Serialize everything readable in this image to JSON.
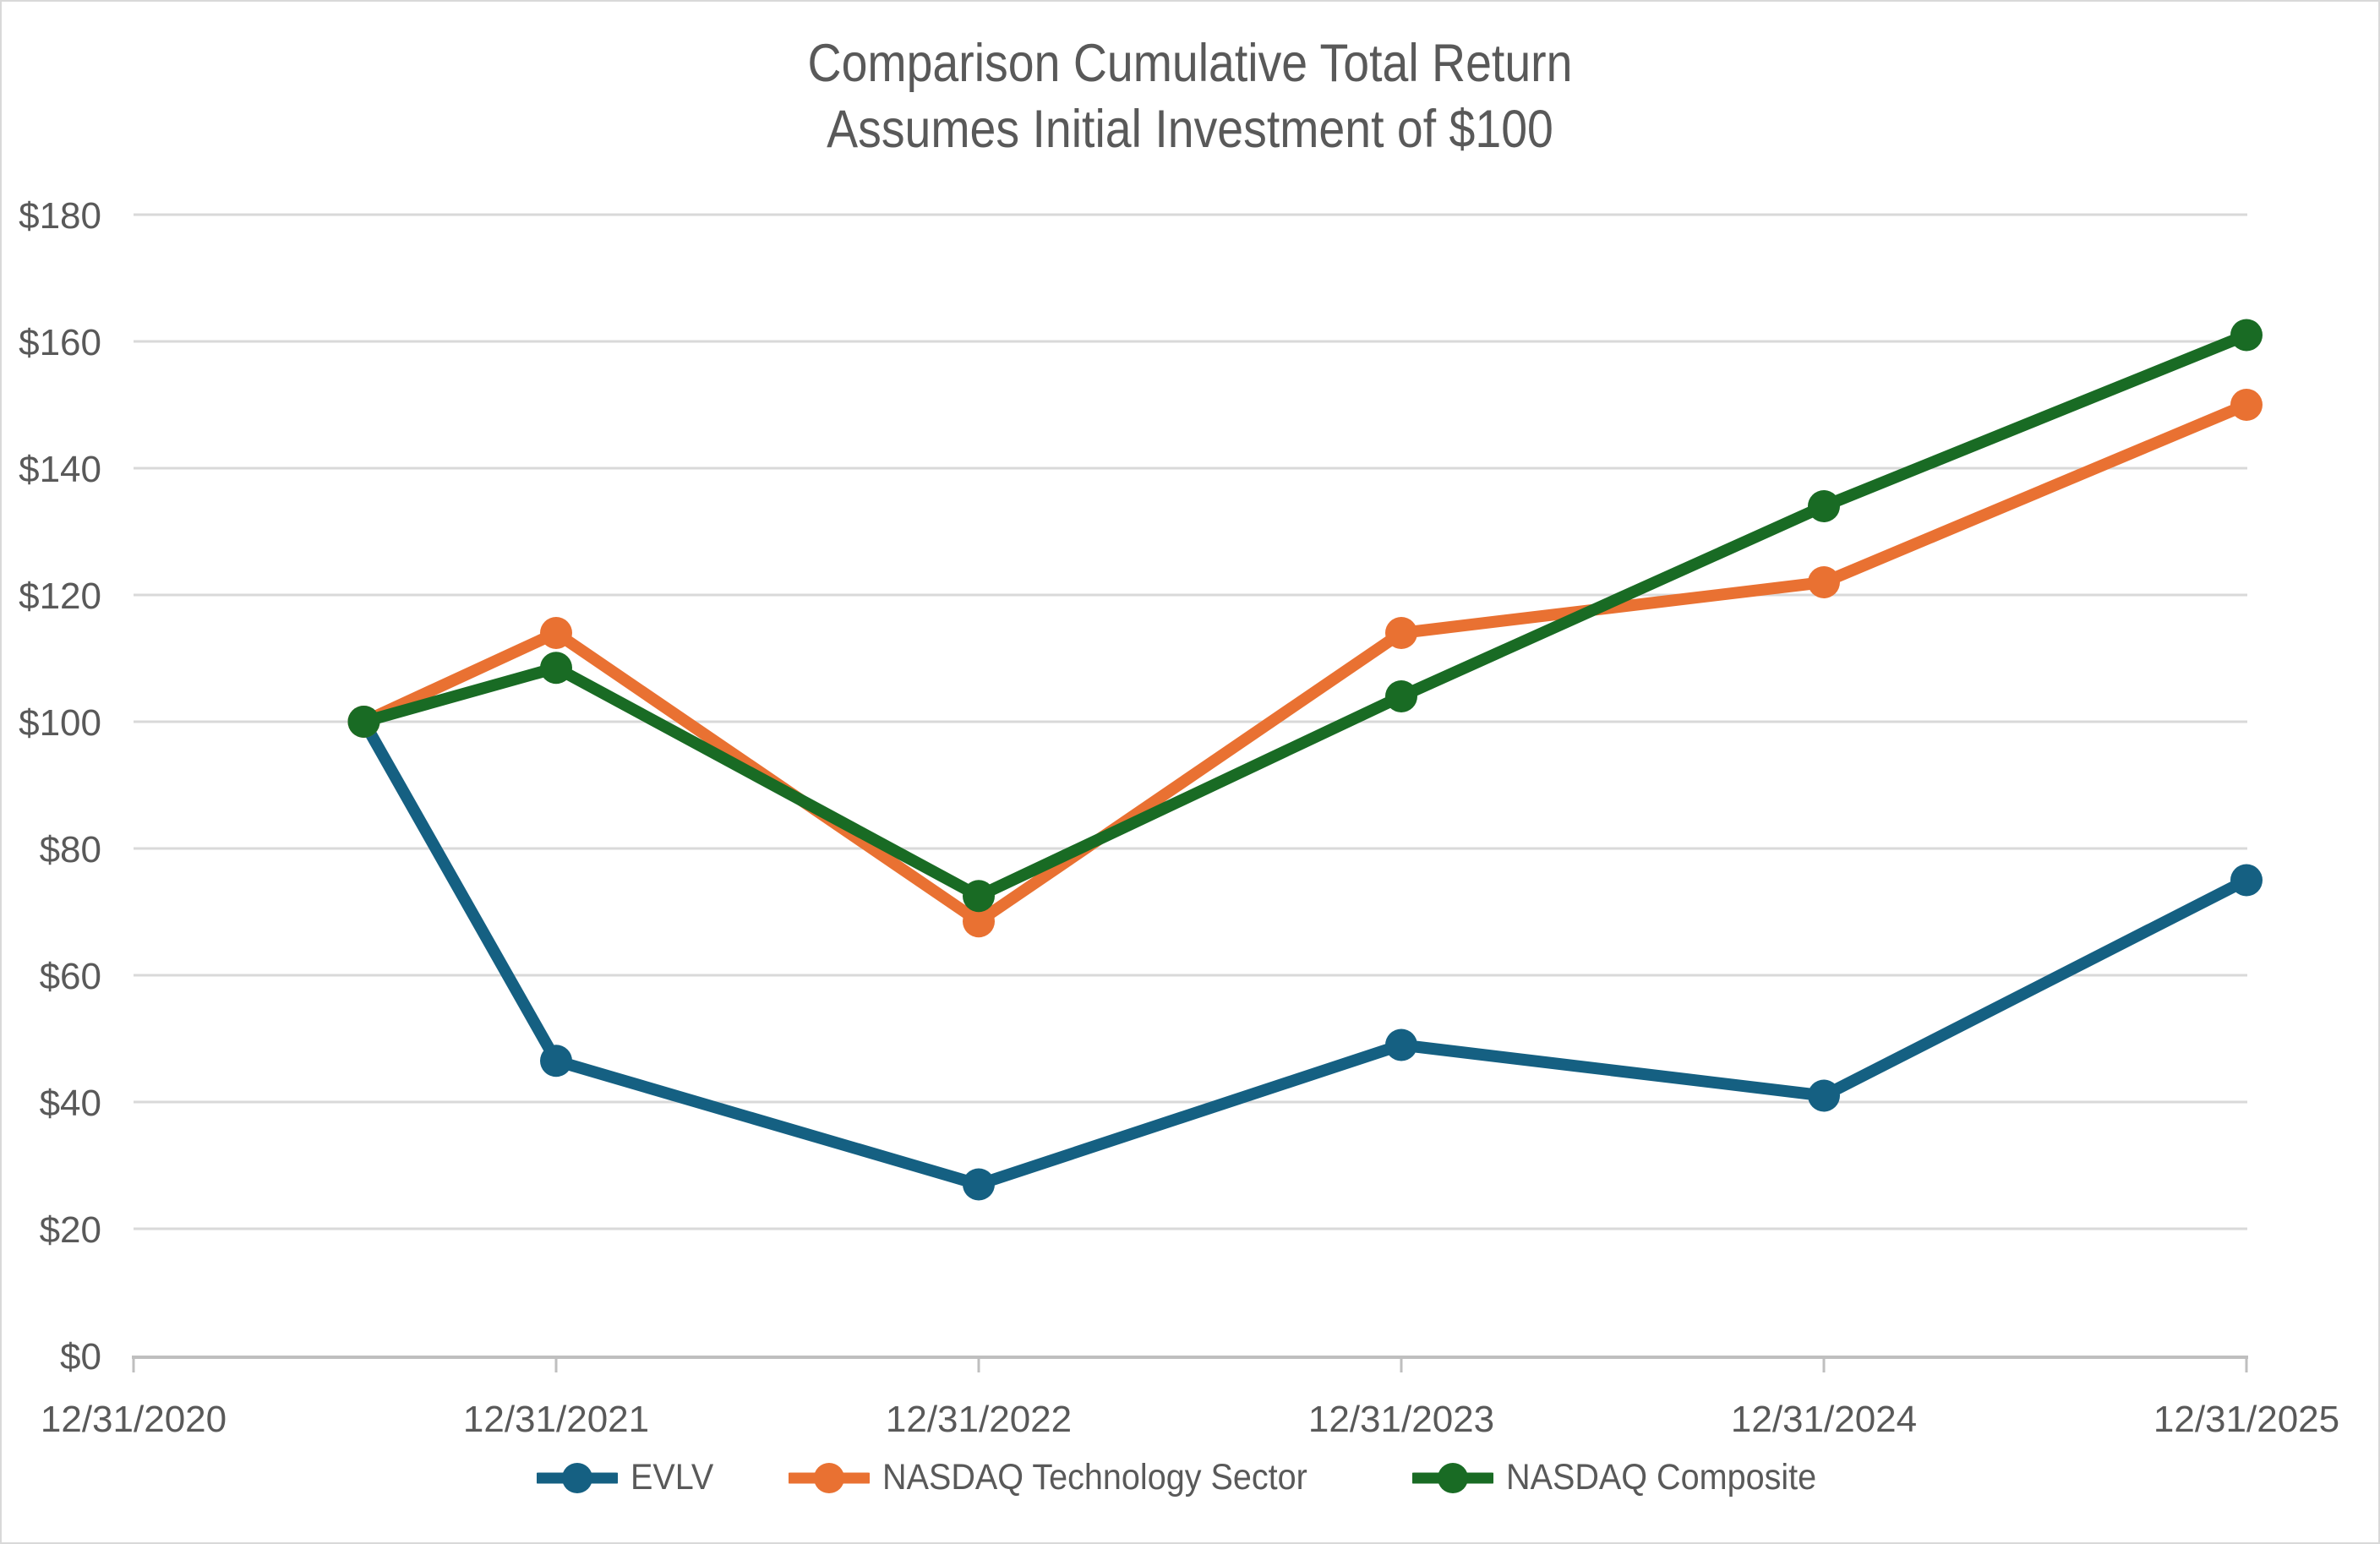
{
  "page": {
    "background": "#FFFFFF",
    "border_color": "#D9D9D9",
    "text_color": "#595959"
  },
  "chart_data": {
    "type": "line",
    "title": "Comparison Cumulative Total Return",
    "subtitle": "Assumes Initial Investment of $100",
    "x_tick_labels": [
      "12/31/2020",
      "12/31/2021",
      "12/31/2022",
      "12/31/2023",
      "12/31/2024",
      "12/31/2025"
    ],
    "x_domain": [
      0,
      5
    ],
    "y_ticks": [
      0,
      20,
      40,
      60,
      80,
      100,
      120,
      140,
      160,
      180
    ],
    "ylim": [
      0,
      180
    ],
    "y_tick_prefix": "$",
    "grid": true,
    "legend_position": "bottom",
    "gridline_color": "#D9D9D9",
    "axis_color": "#BFBFBF",
    "tick_label_color": "#595959",
    "series": [
      {
        "name": "EVLV",
        "color": "#156082",
        "x": [
          0.545,
          1,
          2,
          3,
          4,
          5
        ],
        "values": [
          100,
          46.5,
          27,
          49,
          41,
          75
        ]
      },
      {
        "name": "NASDAQ Technology Sector",
        "color": "#E97132",
        "x": [
          0.545,
          1,
          2,
          3,
          4,
          5
        ],
        "values": [
          100,
          114,
          68.5,
          114,
          122,
          150
        ]
      },
      {
        "name": "NASDAQ Composite",
        "color": "#196B24",
        "x": [
          0.545,
          1,
          2,
          3,
          4,
          5
        ],
        "values": [
          100,
          108.5,
          72.5,
          104,
          134,
          161
        ]
      }
    ]
  }
}
